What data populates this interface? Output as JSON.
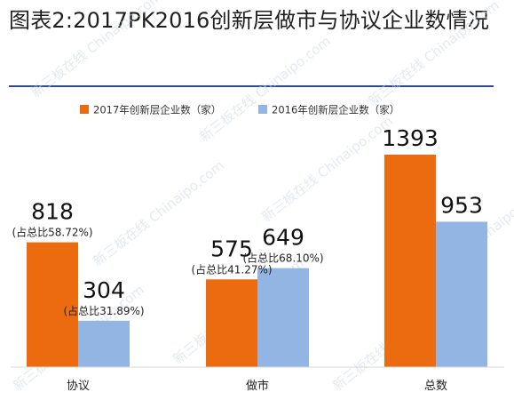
{
  "title": "图表2:2017PK2016创新层做市与协议企业数情况",
  "watermark": "新三板在线 Chinaipo.com",
  "chart_data": {
    "type": "bar",
    "categories": [
      "协议",
      "做市",
      "总数"
    ],
    "series": [
      {
        "name": "2017年创新层企业数（家）",
        "color": "#ed6b0f",
        "values": [
          818,
          575,
          1393
        ],
        "share_labels": [
          "(占总比58.72%)",
          "(占总比41.27%)",
          ""
        ]
      },
      {
        "name": "2016年创新层企业数（家）",
        "color": "#93b5e3",
        "values": [
          304,
          649,
          953
        ],
        "share_labels": [
          "(占总比31.89%)",
          "(占总比68.10%)",
          ""
        ]
      }
    ],
    "ylim": [
      0,
      1500
    ],
    "grid": false,
    "legend": "top"
  }
}
